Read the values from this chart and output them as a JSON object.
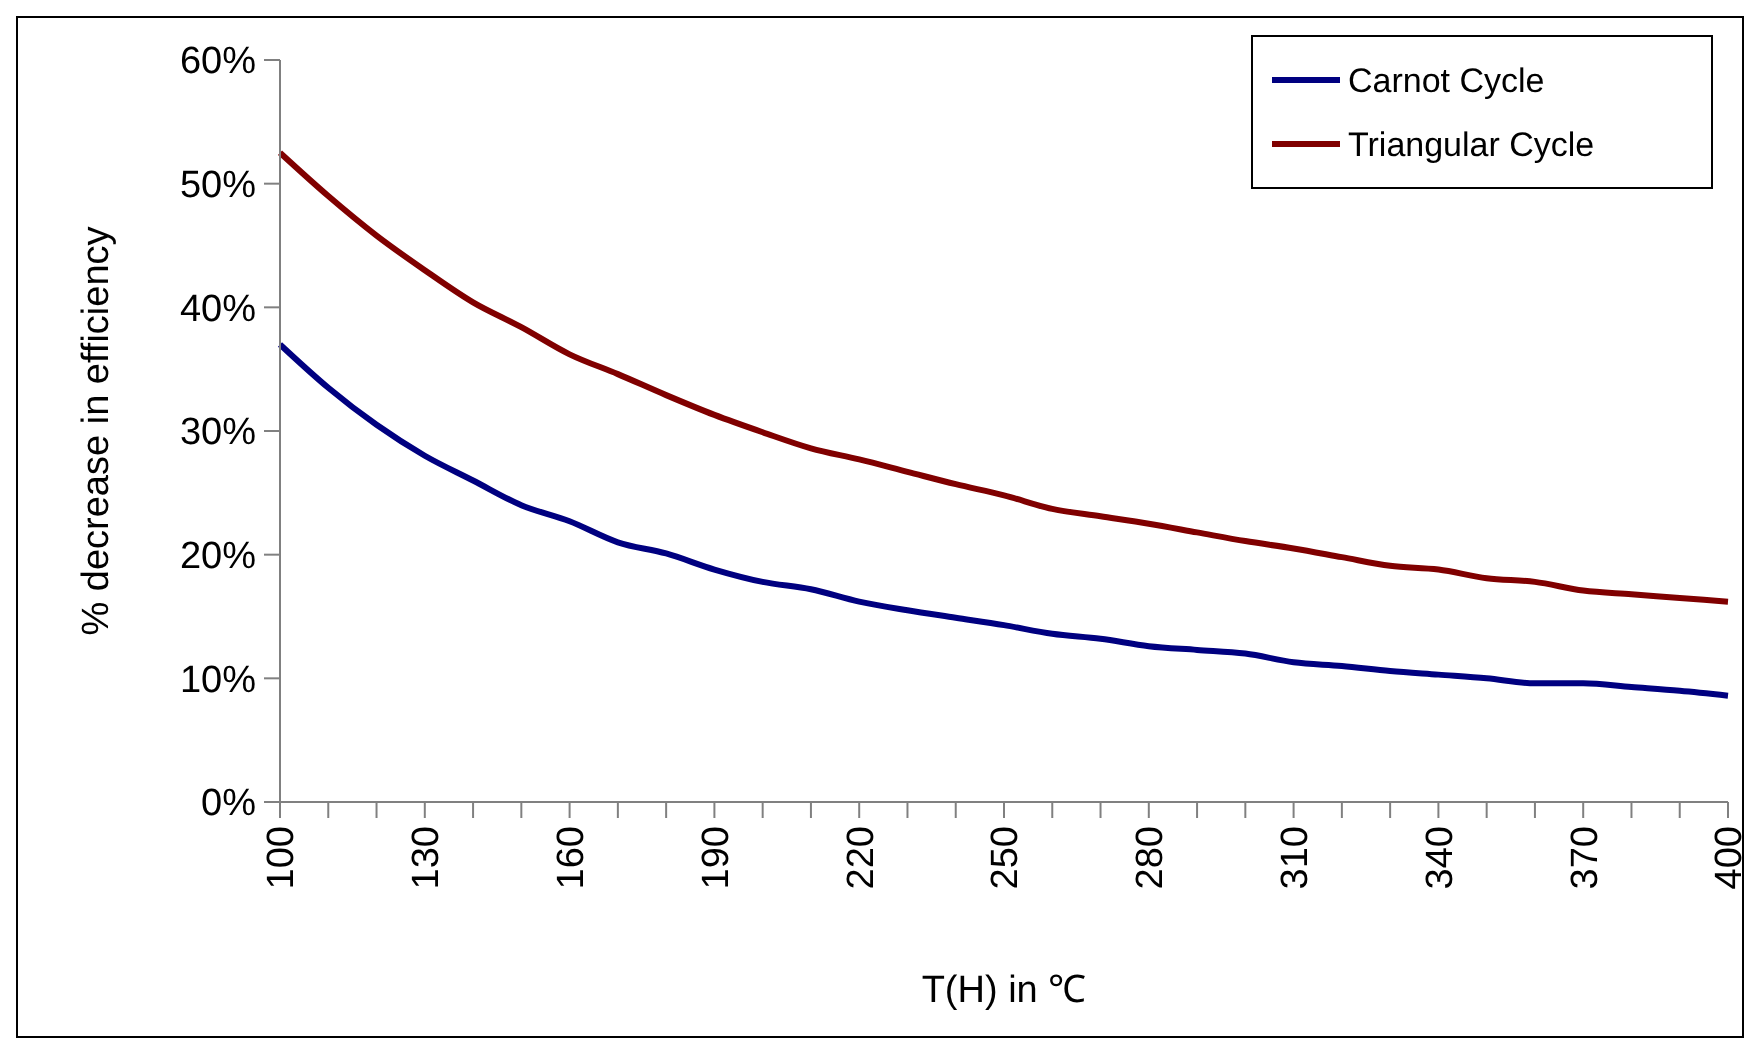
{
  "chart_data": {
    "type": "line",
    "xlabel": "T(H) in ℃",
    "ylabel": "% decrease in efficiency",
    "x": [
      100,
      110,
      120,
      130,
      140,
      150,
      160,
      170,
      180,
      190,
      200,
      210,
      220,
      230,
      240,
      250,
      260,
      270,
      280,
      290,
      300,
      310,
      320,
      330,
      340,
      350,
      360,
      370,
      380,
      390,
      400
    ],
    "series": [
      {
        "name": "Carnot Cycle",
        "color": "#000080",
        "values": [
          37.0,
          33.5,
          30.5,
          28.0,
          26.0,
          24.0,
          22.7,
          21.0,
          20.1,
          18.8,
          17.8,
          17.2,
          16.2,
          15.5,
          14.9,
          14.3,
          13.6,
          13.2,
          12.6,
          12.3,
          12.0,
          11.3,
          11.0,
          10.6,
          10.3,
          10.0,
          9.6,
          9.6,
          9.3,
          9.0,
          8.6
        ]
      },
      {
        "name": "Triangular Cycle",
        "color": "#800000",
        "values": [
          52.5,
          49.0,
          45.8,
          43.0,
          40.4,
          38.4,
          36.2,
          34.6,
          32.9,
          31.3,
          29.9,
          28.6,
          27.7,
          26.7,
          25.7,
          24.8,
          23.7,
          23.1,
          22.5,
          21.8,
          21.1,
          20.5,
          19.8,
          19.1,
          18.8,
          18.1,
          17.8,
          17.1,
          16.8,
          16.5,
          16.2
        ]
      }
    ],
    "xlim": [
      100,
      400
    ],
    "xticks": [
      100,
      {
        "value": 110,
        "label": null
      },
      {
        "value": 120,
        "label": null
      },
      130,
      {
        "value": 140,
        "label": null
      },
      {
        "value": 150,
        "label": null
      },
      160,
      {
        "value": 170,
        "label": null
      },
      {
        "value": 180,
        "label": null
      },
      190,
      {
        "value": 200,
        "label": null
      },
      {
        "value": 210,
        "label": null
      },
      220,
      {
        "value": 230,
        "label": null
      },
      {
        "value": 240,
        "label": null
      },
      250,
      {
        "value": 260,
        "label": null
      },
      {
        "value": 270,
        "label": null
      },
      280,
      {
        "value": 290,
        "label": null
      },
      {
        "value": 300,
        "label": null
      },
      310,
      {
        "value": 320,
        "label": null
      },
      {
        "value": 330,
        "label": null
      },
      340,
      {
        "value": 350,
        "label": null
      },
      {
        "value": 360,
        "label": null
      },
      370,
      {
        "value": 380,
        "label": null
      },
      {
        "value": 390,
        "label": null
      },
      400
    ],
    "ylim": [
      0,
      60
    ],
    "yticks": [
      {
        "value": 0,
        "label": "0%"
      },
      {
        "value": 10,
        "label": "10%"
      },
      {
        "value": 20,
        "label": "20%"
      },
      {
        "value": 30,
        "label": "30%"
      },
      {
        "value": 40,
        "label": "40%"
      },
      {
        "value": 50,
        "label": "50%"
      },
      {
        "value": 60,
        "label": "60%"
      }
    ],
    "grid": false,
    "legend": "top right",
    "marker": "none",
    "line_style": "solid"
  }
}
